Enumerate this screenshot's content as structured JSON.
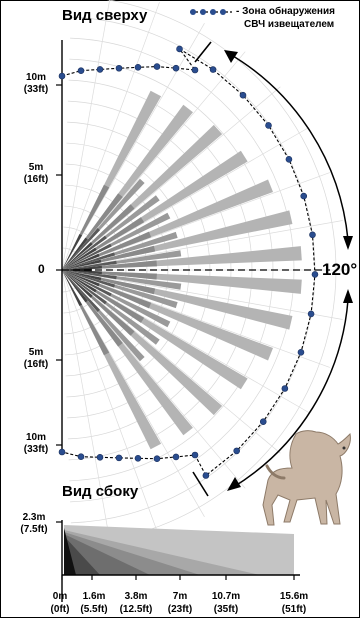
{
  "top_view": {
    "title": "Вид сверху",
    "range_labels": {
      "top_10m": "10m",
      "top_10m_ft": "(33ft)",
      "top_5m": "5m",
      "top_5m_ft": "(16ft)",
      "center": "0",
      "bottom_5m": "5m",
      "bottom_5m_ft": "(16ft)",
      "bottom_10m": "10m",
      "bottom_10m_ft": "(33ft)"
    },
    "angle_label": "120°"
  },
  "legend": {
    "line1": "- Зона обнаружения",
    "line2": "СВЧ извещателем"
  },
  "side_view": {
    "title": "Вид сбоку",
    "height_label": "2.3m",
    "height_label_ft": "(7.5ft)",
    "distances": [
      {
        "m": "0m",
        "ft": "(0ft)"
      },
      {
        "m": "1.6m",
        "ft": "(5.5ft)"
      },
      {
        "m": "3.8m",
        "ft": "(12.5ft)"
      },
      {
        "m": "7m",
        "ft": "(23ft)"
      },
      {
        "m": "10.7m",
        "ft": "(35ft)"
      },
      {
        "m": "15.6m",
        "ft": "(51ft)"
      }
    ]
  },
  "colors": {
    "microwave_dot": "#2a4d8f",
    "arrow": "#000000",
    "beam_light": "#b4b4b4",
    "beam_mid": "#8a8a8a",
    "beam_dark": "#444444"
  },
  "icons": {
    "dog": "dog-icon",
    "legend": "microwave-zone-dot-line"
  }
}
